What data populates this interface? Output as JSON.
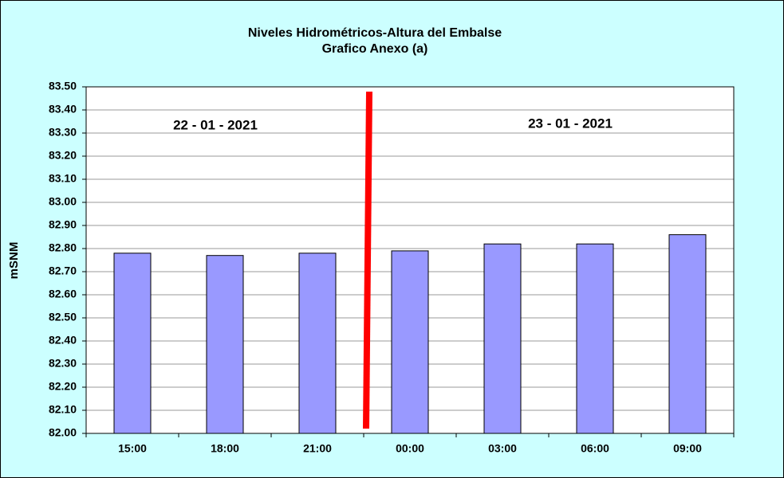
{
  "chart_data": {
    "type": "bar",
    "title": "Niveles Hidrométricos-Altura del Embalse",
    "subtitle": "Grafico Anexo (a)",
    "ylabel": "mSNM",
    "annotations": [
      "22 - 01 - 2021",
      "23 - 01 - 2021"
    ],
    "categories": [
      "15:00",
      "18:00",
      "21:00",
      "00:00",
      "03:00",
      "06:00",
      "09:00"
    ],
    "values": [
      82.78,
      82.77,
      82.78,
      82.79,
      82.82,
      82.82,
      82.86
    ],
    "color": "#9999ff",
    "ylim": [
      82,
      83.5
    ],
    "yticks": [
      {
        "value": 82,
        "label": "82.00"
      },
      {
        "value": 82.1,
        "label": "82.10"
      },
      {
        "value": 82.2,
        "label": "82.20"
      },
      {
        "value": 82.3,
        "label": "82.30"
      },
      {
        "value": 82.4,
        "label": "82.40"
      },
      {
        "value": 82.5,
        "label": "82.50"
      },
      {
        "value": 82.6,
        "label": "82.60"
      },
      {
        "value": 82.7,
        "label": "82.70"
      },
      {
        "value": 82.8,
        "label": "82.80"
      },
      {
        "value": 82.9,
        "label": "82.90"
      },
      {
        "value": 83,
        "label": "83.00"
      },
      {
        "value": 83.1,
        "label": "83.10"
      },
      {
        "value": 83.2,
        "label": "83.20"
      },
      {
        "value": 83.3,
        "label": "83.30"
      },
      {
        "value": 83.4,
        "label": "83.40"
      },
      {
        "value": 83.5,
        "label": "83.50"
      }
    ],
    "grid": true
  }
}
